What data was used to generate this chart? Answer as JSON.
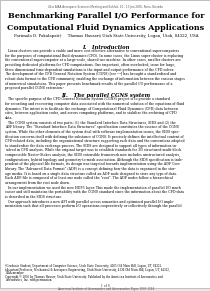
{
  "bg_color": "#e8e8e8",
  "page_bg": "#ffffff",
  "header_line": "41st AIAA Aerospace Sciences Meeting and Exhibit, 10 - 13 Jan 2005, Reno, Nevada",
  "title_line1": "Benchmarking Parallel I/O Performance for",
  "title_line2": "Computational Fluid Dynamics Applications",
  "authors": "Parimala D. Pakalapati†     Thomas Hauser‡ Utah State University, Logan, Utah, 84322, USA",
  "section1_title": "I.   Introduction",
  "section1_body": [
    "   Linux clusters can provide a viable and more cost effective alternative to conventional supercomputers",
    "for the purposes of computational fluid dynamics (CFD). In some cases, the Linux super cluster is replacing",
    "the conventional supercomputer at a large-scale, shared-use machine. In other cases, smaller clusters are",
    "providing dedicated platforms for CFD computations. One important, often overlooked, issue for large,",
    "three dimensional time-dependent simulations is the input and output performance of the CFD solver.",
    "The development of the CFD General Notation System (CGNS) [see ¹²³] has brought a standardized and",
    "robust data format to the CFD community, enabling the exchange of information between the various stages",
    "of numerical simulations. This paper presents benchmark results of the parallel I/O performance of a",
    "proposed parallel CGNS extension.¹"
  ],
  "section2_title": "II.   The parallel CGNS system",
  "section2_body": [
    "   The specific purpose of the CFD General Notation System (CGNS) project is to provide a standard",
    "for recording and recovering computer data associated with the numerical solution of the equations of fluid",
    "dynamics. The intent is to facilitate the exchange of Computational Fluid Dynamics (CFD) data between",
    "sites, between application codes, and across computing platforms, and to stabilize the archiving of CFD",
    "data.",
    "   The CGNS system consists of two parts: (1) the Standard Interface Data Structures, SIDS and (2) the",
    "ADF library. The “Standard Interface Data Structures” specification constitutes the essence of the CGNS",
    "system. While the other elements of the system deal with software implementation issues, the SIDS spec-",
    "ification concerns itself with defining the substance of CGNS. It precisely defines the intellectual content of",
    "CFD-related data, including the organizational structure supporting such data and the conventions adopted",
    "to standardize the data exchange process. The SIDS are designed to support all types of information in-",
    "volved in CFD analysis. While the original target was to establish standards for 3D structured multi-block",
    "compressible Navier-Stokes analysis, the SIDS extensible framework now includes unstructured analysis,",
    "configurations, hybrid topology and geometry-to-mesh association. Although the SIDS specification is inde-",
    "pendent of the physical file formats, its design was targeted towards implementation using the ADF Core",
    "library. The “Advanced Data Format” (ADF) is a concept defining how the data is organized in the stor-",
    "age media. It is based on a single data structure called an ADF node designed to store any type of data.",
    "Each ADF file is composed of at least one node called the “root”. The ADF nodes follow a hierarchical",
    "arrangement from the root node down.",
    "   In our implementation we used the new HDF5 layer. This made the implementation of parallel I/O much",
    "easier and still maintains the portability with the CGNS standard since the information about the CFD-data",
    "is described in the SIDS structure.",
    "   Our approach introduces a new API with parallel access semantics and optimized parallel I/O imple-",
    "mentation such that all processes perform I/O operations cooperatively or collectively through the parallel"
  ],
  "footnote1": "†Graduate Student, Department of Computer Science, Utah State University, 4205 Old Main Hill, Logan, UT, 84322.",
  "footnote2": "‡Assistant Professor, Mechanical & Aerospace Engineering, Utah State University, 4130 Old Main Hill, Logan, UT, 84322,",
  "footnote2b": "AIAA member.",
  "footnote3": "Copyright © 2005 by Thomas Hauser, Utah State University. Published by the American Institute of Aeronautics and",
  "footnote3b": "Astronautics, Inc. with permission.",
  "page_footer": "1 of 8",
  "journal_footer": "American Institute of Aeronautics and Astronautics Paper 2005-1284",
  "title_fontsize": 5.8,
  "header_fontsize": 2.0,
  "author_fontsize": 2.8,
  "section_title_fontsize": 3.8,
  "body_fontsize": 2.3,
  "footnote_fontsize": 1.9,
  "footer_fontsize": 2.2
}
